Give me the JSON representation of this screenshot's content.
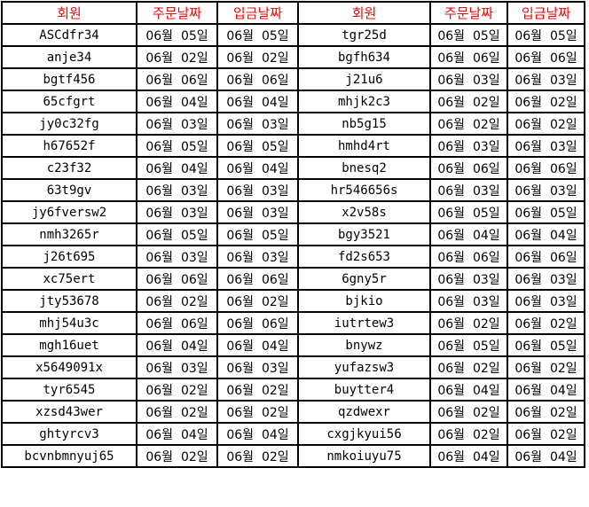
{
  "headers": [
    "회원",
    "주문날짜",
    "입금날짜",
    "회원",
    "주문날짜",
    "입금날짜"
  ],
  "colors": {
    "header_text": "#ff0000",
    "grid": "#000000"
  },
  "rows": [
    [
      "ASCdfr34",
      "06월  05일",
      "06월  05일",
      "tgr25d",
      "06월  05일",
      "06월  05일"
    ],
    [
      "anje34",
      "06월  02일",
      "06월  02일",
      "bgfh634",
      "06월  06일",
      "06월  06일"
    ],
    [
      "bgtf456",
      "06월  06일",
      "06월  06일",
      "j21u6",
      "06월  03일",
      "06월  03일"
    ],
    [
      "65cfgrt",
      "06월  04일",
      "06월  04일",
      "mhjk2c3",
      "06월  02일",
      "06월  02일"
    ],
    [
      "jy0c32fg",
      "06월  03일",
      "06월  03일",
      "nb5g15",
      "06월  02일",
      "06월  02일"
    ],
    [
      "h67652f",
      "06월  05일",
      "06월  05일",
      "hmhd4rt",
      "06월  03일",
      "06월  03일"
    ],
    [
      "c23f32",
      "06월  04일",
      "06월  04일",
      "bnesq2",
      "06월  06일",
      "06월  06일"
    ],
    [
      "63t9gv",
      "06월  03일",
      "06월  03일",
      "hr546656s",
      "06월  03일",
      "06월  03일"
    ],
    [
      "jy6fversw2",
      "06월  03일",
      "06월  03일",
      "x2v58s",
      "06월  05일",
      "06월  05일"
    ],
    [
      "nmh3265r",
      "06월  05일",
      "06월  05일",
      "bgy3521",
      "06월  04일",
      "06월  04일"
    ],
    [
      "j26t695",
      "06월  03일",
      "06월  03일",
      "fd2s653",
      "06월  06일",
      "06월  06일"
    ],
    [
      "xc75ert",
      "06월  06일",
      "06월  06일",
      "6gny5r",
      "06월  03일",
      "06월  03일"
    ],
    [
      "jty53678",
      "06월  02일",
      "06월  02일",
      "bjkio",
      "06월  03일",
      "06월  03일"
    ],
    [
      "mhj54u3c",
      "06월  06일",
      "06월  06일",
      "iutrtew3",
      "06월  02일",
      "06월  02일"
    ],
    [
      "mgh16uet",
      "06월  04일",
      "06월  04일",
      "bnywz",
      "06월  05일",
      "06월  05일"
    ],
    [
      "x5649091x",
      "06월  03일",
      "06월  03일",
      "yufazsw3",
      "06월  02일",
      "06월  02일"
    ],
    [
      "tyr6545",
      "06월  02일",
      "06월  02일",
      "buytter4",
      "06월  04일",
      "06월  04일"
    ],
    [
      "xzsd43wer",
      "06월  02일",
      "06월  02일",
      "qzdwexr",
      "06월  02일",
      "06월  02일"
    ],
    [
      "ghtyrcv3",
      "06월  04일",
      "06월  04일",
      "cxgjkyui56",
      "06월  02일",
      "06월  02일"
    ],
    [
      "bcvnbmnyuj65",
      "06월  02일",
      "06월  02일",
      "nmkoiuyu75",
      "06월  04일",
      "06월  04일"
    ]
  ]
}
